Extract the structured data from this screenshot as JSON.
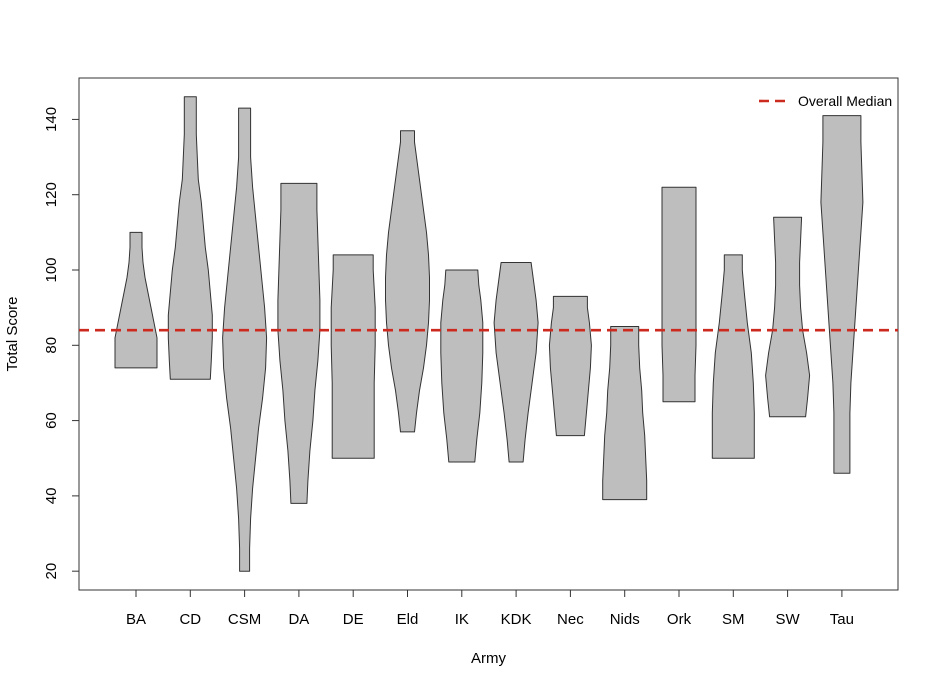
{
  "chart_data": {
    "type": "violin",
    "xlabel": "Army",
    "ylabel": "Total Score",
    "ylim": [
      15,
      151
    ],
    "yticks": [
      20,
      40,
      60,
      80,
      100,
      120,
      140
    ],
    "categories": [
      "BA",
      "CD",
      "CSM",
      "DA",
      "DE",
      "Eld",
      "IK",
      "KDK",
      "Nec",
      "Nids",
      "Ork",
      "SM",
      "SW",
      "Tau"
    ],
    "violins": [
      {
        "name": "BA",
        "min": 74,
        "max": 110,
        "profile": [
          [
            74,
            21
          ],
          [
            78,
            21
          ],
          [
            82,
            21
          ],
          [
            86,
            18
          ],
          [
            90,
            15
          ],
          [
            94,
            12
          ],
          [
            98,
            9
          ],
          [
            102,
            7
          ],
          [
            106,
            6
          ],
          [
            110,
            6
          ]
        ]
      },
      {
        "name": "CD",
        "min": 71,
        "max": 146,
        "profile": [
          [
            71,
            20
          ],
          [
            76,
            21
          ],
          [
            82,
            22
          ],
          [
            88,
            22
          ],
          [
            94,
            20
          ],
          [
            100,
            18
          ],
          [
            106,
            15
          ],
          [
            112,
            13
          ],
          [
            118,
            11
          ],
          [
            124,
            8
          ],
          [
            130,
            7
          ],
          [
            136,
            6
          ],
          [
            142,
            6
          ],
          [
            146,
            6
          ]
        ]
      },
      {
        "name": "CSM",
        "min": 20,
        "max": 143,
        "profile": [
          [
            20,
            5
          ],
          [
            26,
            5
          ],
          [
            34,
            6
          ],
          [
            42,
            8
          ],
          [
            50,
            11
          ],
          [
            58,
            14
          ],
          [
            66,
            18
          ],
          [
            74,
            21
          ],
          [
            82,
            22
          ],
          [
            90,
            20
          ],
          [
            98,
            17
          ],
          [
            106,
            14
          ],
          [
            114,
            11
          ],
          [
            122,
            8
          ],
          [
            130,
            6
          ],
          [
            138,
            6
          ],
          [
            143,
            6
          ]
        ]
      },
      {
        "name": "DA",
        "min": 38,
        "max": 123,
        "profile": [
          [
            38,
            8
          ],
          [
            44,
            9
          ],
          [
            52,
            11
          ],
          [
            60,
            14
          ],
          [
            68,
            16
          ],
          [
            76,
            19
          ],
          [
            84,
            21
          ],
          [
            92,
            21
          ],
          [
            100,
            20
          ],
          [
            108,
            19
          ],
          [
            116,
            18
          ],
          [
            123,
            18
          ]
        ]
      },
      {
        "name": "DE",
        "min": 50,
        "max": 104,
        "profile": [
          [
            50,
            21
          ],
          [
            60,
            21
          ],
          [
            70,
            21
          ],
          [
            80,
            22
          ],
          [
            90,
            22
          ],
          [
            100,
            20
          ],
          [
            104,
            20
          ]
        ]
      },
      {
        "name": "Eld",
        "min": 57,
        "max": 137,
        "profile": [
          [
            57,
            7
          ],
          [
            62,
            9
          ],
          [
            68,
            12
          ],
          [
            74,
            16
          ],
          [
            80,
            19
          ],
          [
            86,
            21
          ],
          [
            92,
            22
          ],
          [
            98,
            22
          ],
          [
            104,
            21
          ],
          [
            110,
            19
          ],
          [
            116,
            16
          ],
          [
            122,
            13
          ],
          [
            128,
            10
          ],
          [
            134,
            7
          ],
          [
            137,
            7
          ]
        ]
      },
      {
        "name": "IK",
        "min": 49,
        "max": 100,
        "profile": [
          [
            49,
            13
          ],
          [
            55,
            15
          ],
          [
            62,
            18
          ],
          [
            70,
            20
          ],
          [
            78,
            21
          ],
          [
            86,
            21
          ],
          [
            92,
            19
          ],
          [
            96,
            17
          ],
          [
            100,
            16
          ]
        ]
      },
      {
        "name": "KDK",
        "min": 49,
        "max": 102,
        "profile": [
          [
            49,
            7
          ],
          [
            55,
            9
          ],
          [
            62,
            12
          ],
          [
            70,
            16
          ],
          [
            78,
            20
          ],
          [
            86,
            22
          ],
          [
            92,
            20
          ],
          [
            98,
            17
          ],
          [
            102,
            15
          ]
        ]
      },
      {
        "name": "Nec",
        "min": 56,
        "max": 93,
        "profile": [
          [
            56,
            14
          ],
          [
            62,
            16
          ],
          [
            68,
            18
          ],
          [
            74,
            20
          ],
          [
            80,
            21
          ],
          [
            86,
            19
          ],
          [
            90,
            17
          ],
          [
            93,
            17
          ]
        ]
      },
      {
        "name": "Nids",
        "min": 39,
        "max": 85,
        "profile": [
          [
            39,
            22
          ],
          [
            44,
            22
          ],
          [
            50,
            21
          ],
          [
            56,
            20
          ],
          [
            62,
            18
          ],
          [
            68,
            17
          ],
          [
            74,
            15
          ],
          [
            80,
            14
          ],
          [
            85,
            14
          ]
        ]
      },
      {
        "name": "Ork",
        "min": 65,
        "max": 122,
        "profile": [
          [
            65,
            16
          ],
          [
            72,
            16
          ],
          [
            80,
            17
          ],
          [
            88,
            17
          ],
          [
            96,
            17
          ],
          [
            104,
            17
          ],
          [
            112,
            17
          ],
          [
            120,
            17
          ],
          [
            122,
            17
          ]
        ]
      },
      {
        "name": "SM",
        "min": 50,
        "max": 104,
        "profile": [
          [
            50,
            21
          ],
          [
            56,
            21
          ],
          [
            62,
            21
          ],
          [
            70,
            20
          ],
          [
            78,
            18
          ],
          [
            86,
            14
          ],
          [
            94,
            11
          ],
          [
            100,
            9
          ],
          [
            104,
            9
          ]
        ]
      },
      {
        "name": "SW",
        "min": 61,
        "max": 114,
        "profile": [
          [
            61,
            18
          ],
          [
            66,
            20
          ],
          [
            72,
            22
          ],
          [
            78,
            19
          ],
          [
            84,
            15
          ],
          [
            90,
            13
          ],
          [
            96,
            12
          ],
          [
            102,
            12
          ],
          [
            108,
            13
          ],
          [
            114,
            14
          ]
        ]
      },
      {
        "name": "Tau",
        "min": 46,
        "max": 141,
        "profile": [
          [
            46,
            8
          ],
          [
            54,
            8
          ],
          [
            62,
            8
          ],
          [
            70,
            9
          ],
          [
            78,
            11
          ],
          [
            86,
            13
          ],
          [
            94,
            15
          ],
          [
            102,
            17
          ],
          [
            110,
            19
          ],
          [
            118,
            21
          ],
          [
            126,
            20
          ],
          [
            134,
            19
          ],
          [
            141,
            19
          ]
        ]
      }
    ],
    "reference_line": {
      "value": 84,
      "label": "Overall Median",
      "color": "#cc2a1f",
      "style": "dashed"
    },
    "legend": {
      "position": "top-right",
      "entries": [
        "Overall Median"
      ]
    },
    "violin_fill": "#bebebe",
    "grid": false
  }
}
